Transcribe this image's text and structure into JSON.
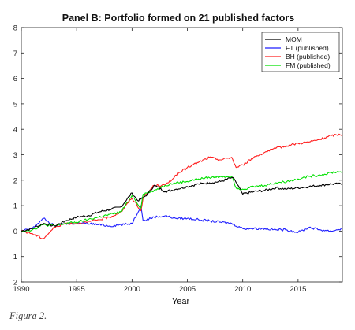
{
  "caption": "Figura 2.",
  "chart_data": {
    "type": "line",
    "title": "Panel B: Portfolio formed on 21 published factors",
    "xlabel": "Year",
    "ylabel": "",
    "xlim": [
      1990,
      2019
    ],
    "ylim": [
      -2,
      8
    ],
    "xticks": [
      1990,
      1995,
      2000,
      2005,
      2010,
      2015
    ],
    "xtick_labels": [
      "1990",
      "1995",
      "2000",
      "2005",
      "2010",
      "2015"
    ],
    "yticks": [
      8,
      7,
      6,
      5,
      4,
      3,
      2,
      1,
      0,
      -1,
      -2
    ],
    "ytick_labels": [
      "8",
      "7",
      "6",
      "5",
      "4",
      "3",
      "2",
      "1",
      "0",
      "1",
      "2"
    ],
    "grid": false,
    "legend_position": "top-right",
    "series": [
      {
        "name": "MOM",
        "color": "#000000",
        "x": [
          1990,
          1991,
          1992,
          1993,
          1994,
          1995,
          1996,
          1997,
          1998,
          1999,
          2000,
          2000.5,
          2001,
          2001.5,
          2002,
          2003,
          2004,
          2005,
          2006,
          2007,
          2008,
          2009,
          2009.3,
          2010,
          2011,
          2012,
          2013,
          2014,
          2015,
          2016,
          2017,
          2018,
          2019
        ],
        "y": [
          0.0,
          0.1,
          0.3,
          0.2,
          0.4,
          0.55,
          0.6,
          0.75,
          0.85,
          0.95,
          1.5,
          1.2,
          1.3,
          1.5,
          1.8,
          1.55,
          1.65,
          1.75,
          1.85,
          1.9,
          1.95,
          2.1,
          2.0,
          1.45,
          1.55,
          1.6,
          1.7,
          1.65,
          1.7,
          1.75,
          1.8,
          1.85,
          1.85
        ]
      },
      {
        "name": "FT (published)",
        "color": "#1f1fff",
        "x": [
          1990,
          1991,
          1992,
          1993,
          1994,
          1995,
          1996,
          1997,
          1998,
          1999,
          2000,
          2000.8,
          2001,
          2002,
          2003,
          2004,
          2005,
          2006,
          2007,
          2008,
          2009,
          2010,
          2011,
          2012,
          2013,
          2014,
          2015,
          2016,
          2017,
          2018,
          2019
        ],
        "y": [
          0.0,
          0.1,
          0.5,
          0.2,
          0.3,
          0.3,
          0.3,
          0.25,
          0.2,
          0.25,
          0.3,
          1.0,
          0.4,
          0.55,
          0.6,
          0.5,
          0.5,
          0.45,
          0.4,
          0.35,
          0.3,
          0.1,
          0.1,
          0.1,
          0.05,
          0.05,
          -0.05,
          0.15,
          0.05,
          0.0,
          0.1
        ]
      },
      {
        "name": "BH (published)",
        "color": "#ff2020",
        "x": [
          1990,
          1991,
          1992,
          1993,
          1994,
          1995,
          1996,
          1997,
          1998,
          1999,
          2000,
          2000.8,
          2001,
          2002,
          2003,
          2004,
          2005,
          2006,
          2007,
          2008,
          2009,
          2009.4,
          2010,
          2011,
          2012,
          2013,
          2014,
          2015,
          2016,
          2017,
          2018,
          2019
        ],
        "y": [
          0.0,
          -0.1,
          -0.3,
          0.15,
          0.3,
          0.3,
          0.35,
          0.45,
          0.55,
          0.75,
          1.3,
          0.8,
          1.3,
          1.8,
          1.8,
          2.2,
          2.5,
          2.7,
          2.9,
          2.8,
          2.9,
          2.5,
          2.6,
          2.9,
          3.1,
          3.25,
          3.35,
          3.45,
          3.5,
          3.6,
          3.75,
          3.8
        ]
      },
      {
        "name": "FM (published)",
        "color": "#00e000",
        "x": [
          1990,
          1991,
          1992,
          1993,
          1994,
          1995,
          1996,
          1997,
          1998,
          1999,
          2000,
          2000.8,
          2001,
          2002,
          2003,
          2004,
          2005,
          2006,
          2007,
          2008,
          2009,
          2009.4,
          2010,
          2011,
          2012,
          2013,
          2014,
          2015,
          2016,
          2017,
          2018,
          2019
        ],
        "y": [
          0.0,
          0.05,
          0.25,
          0.2,
          0.3,
          0.35,
          0.45,
          0.55,
          0.65,
          0.75,
          1.4,
          0.9,
          1.45,
          1.6,
          1.8,
          1.9,
          1.95,
          2.05,
          2.1,
          2.15,
          2.15,
          1.7,
          1.65,
          1.75,
          1.8,
          1.9,
          1.95,
          2.05,
          2.15,
          2.2,
          2.3,
          2.35
        ]
      }
    ]
  }
}
